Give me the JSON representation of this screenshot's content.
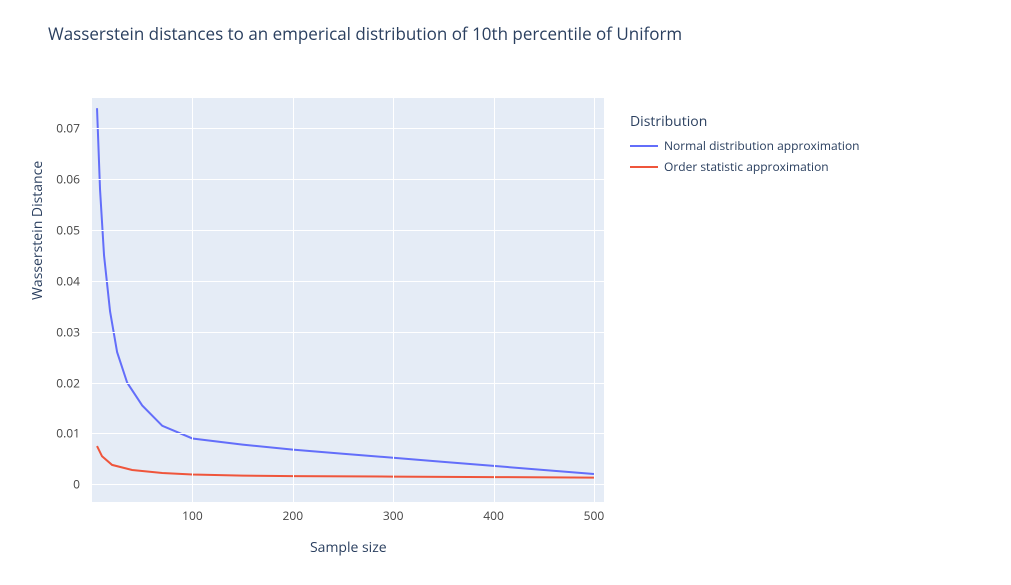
{
  "title": "Wasserstein distances to an emperical distribution of 10th percentile of Uniform",
  "x_axis_label": "Sample size",
  "y_axis_label": "Wasserstein Distance",
  "chart": {
    "type": "line",
    "background_color": "#e5ecf6",
    "grid_color": "#ffffff",
    "line_width": 2,
    "title_fontsize": 17,
    "label_fontsize": 14,
    "tick_fontsize": 12,
    "xlim": [
      0,
      510
    ],
    "ylim": [
      -0.0035,
      0.076
    ],
    "xticks": [
      100,
      200,
      300,
      400,
      500
    ],
    "yticks": [
      0,
      0.01,
      0.02,
      0.03,
      0.04,
      0.05,
      0.06,
      0.07
    ],
    "series": [
      {
        "name": "Normal distribution approximation",
        "color": "#636efa",
        "x": [
          5,
          8,
          12,
          18,
          25,
          35,
          50,
          70,
          100,
          150,
          200,
          250,
          300,
          350,
          400,
          450,
          500
        ],
        "y": [
          0.074,
          0.058,
          0.045,
          0.034,
          0.026,
          0.02,
          0.0155,
          0.0115,
          0.009,
          0.0078,
          0.0068,
          0.006,
          0.0052,
          0.0044,
          0.0036,
          0.0028,
          0.002
        ]
      },
      {
        "name": "Order statistic approximation",
        "color": "#ef553b",
        "x": [
          5,
          10,
          20,
          40,
          70,
          100,
          150,
          200,
          300,
          400,
          500
        ],
        "y": [
          0.0075,
          0.0055,
          0.0038,
          0.0028,
          0.0022,
          0.0019,
          0.0017,
          0.0016,
          0.0015,
          0.0014,
          0.0013
        ]
      }
    ]
  },
  "legend": {
    "title": "Distribution",
    "items": [
      {
        "label": "Normal distribution approximation",
        "color": "#636efa"
      },
      {
        "label": "Order statistic approximation",
        "color": "#ef553b"
      }
    ]
  }
}
